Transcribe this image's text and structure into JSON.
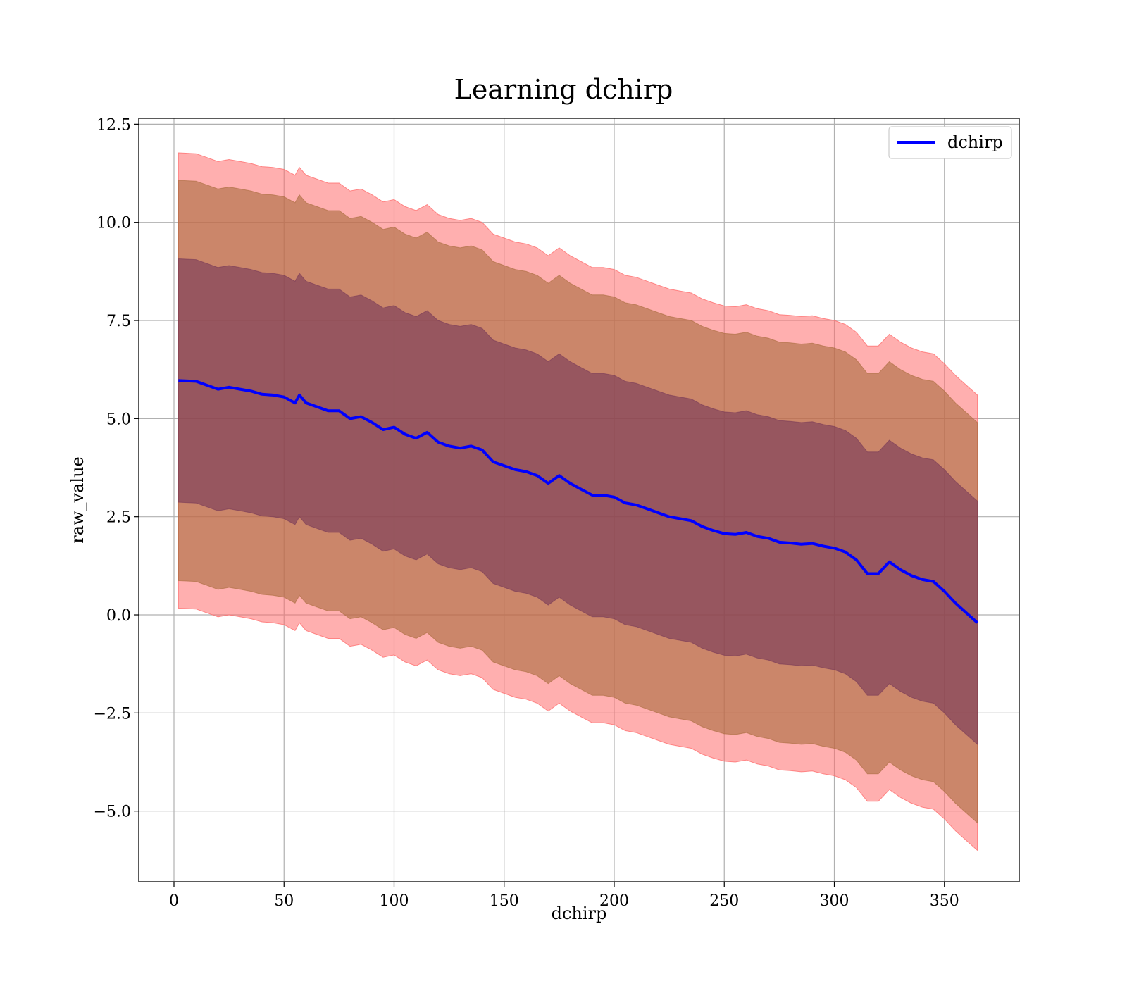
{
  "chart_data": {
    "type": "area",
    "title": "Learning dchirp",
    "xlabel": "dchirp",
    "ylabel": "raw_value",
    "xlim": [
      -16,
      384
    ],
    "ylim": [
      -6.8,
      12.65
    ],
    "xticks": [
      0,
      50,
      100,
      150,
      200,
      250,
      300,
      350
    ],
    "xtick_labels": [
      "0",
      "50",
      "100",
      "150",
      "200",
      "250",
      "300",
      "350"
    ],
    "yticks": [
      12.5,
      10.0,
      7.5,
      5.0,
      2.5,
      0.0,
      -2.5,
      -5.0
    ],
    "ytick_labels": [
      "12.5",
      "10.0",
      "7.5",
      "5.0",
      "2.5",
      "0.0",
      "−2.5",
      "−5.0"
    ],
    "grid": true,
    "legend": {
      "placement": "top-right",
      "entries": [
        "dchirp"
      ]
    },
    "band_offsets": {
      "outer": 5.8,
      "middle": 5.1,
      "inner": 3.1
    },
    "colors": {
      "line": "#0000ff",
      "outer_band": "#ff6e6e",
      "middle_band": "#a86a3c",
      "inner_band": "#6e2f55"
    },
    "series": [
      {
        "name": "dchirp",
        "x": [
          2,
          10,
          15,
          20,
          25,
          30,
          35,
          40,
          45,
          50,
          55,
          57,
          60,
          65,
          70,
          75,
          80,
          85,
          90,
          95,
          100,
          105,
          110,
          115,
          120,
          125,
          130,
          135,
          140,
          145,
          150,
          155,
          160,
          165,
          170,
          175,
          180,
          185,
          190,
          195,
          200,
          205,
          210,
          215,
          220,
          225,
          230,
          235,
          240,
          245,
          250,
          255,
          260,
          265,
          270,
          275,
          280,
          285,
          290,
          295,
          300,
          305,
          310,
          315,
          320,
          325,
          330,
          335,
          340,
          345,
          350,
          355,
          360,
          365
        ],
        "y": [
          5.97,
          5.95,
          5.85,
          5.75,
          5.8,
          5.75,
          5.7,
          5.62,
          5.6,
          5.55,
          5.4,
          5.6,
          5.4,
          5.3,
          5.2,
          5.2,
          5.0,
          5.05,
          4.9,
          4.72,
          4.78,
          4.6,
          4.5,
          4.65,
          4.4,
          4.3,
          4.25,
          4.3,
          4.2,
          3.9,
          3.8,
          3.7,
          3.65,
          3.55,
          3.35,
          3.55,
          3.35,
          3.2,
          3.05,
          3.05,
          3.0,
          2.85,
          2.8,
          2.7,
          2.6,
          2.5,
          2.45,
          2.4,
          2.25,
          2.15,
          2.07,
          2.05,
          2.1,
          2.0,
          1.95,
          1.85,
          1.83,
          1.8,
          1.82,
          1.75,
          1.7,
          1.6,
          1.4,
          1.05,
          1.05,
          1.35,
          1.15,
          1.0,
          0.9,
          0.85,
          0.6,
          0.3,
          0.05,
          -0.2
        ]
      }
    ]
  }
}
